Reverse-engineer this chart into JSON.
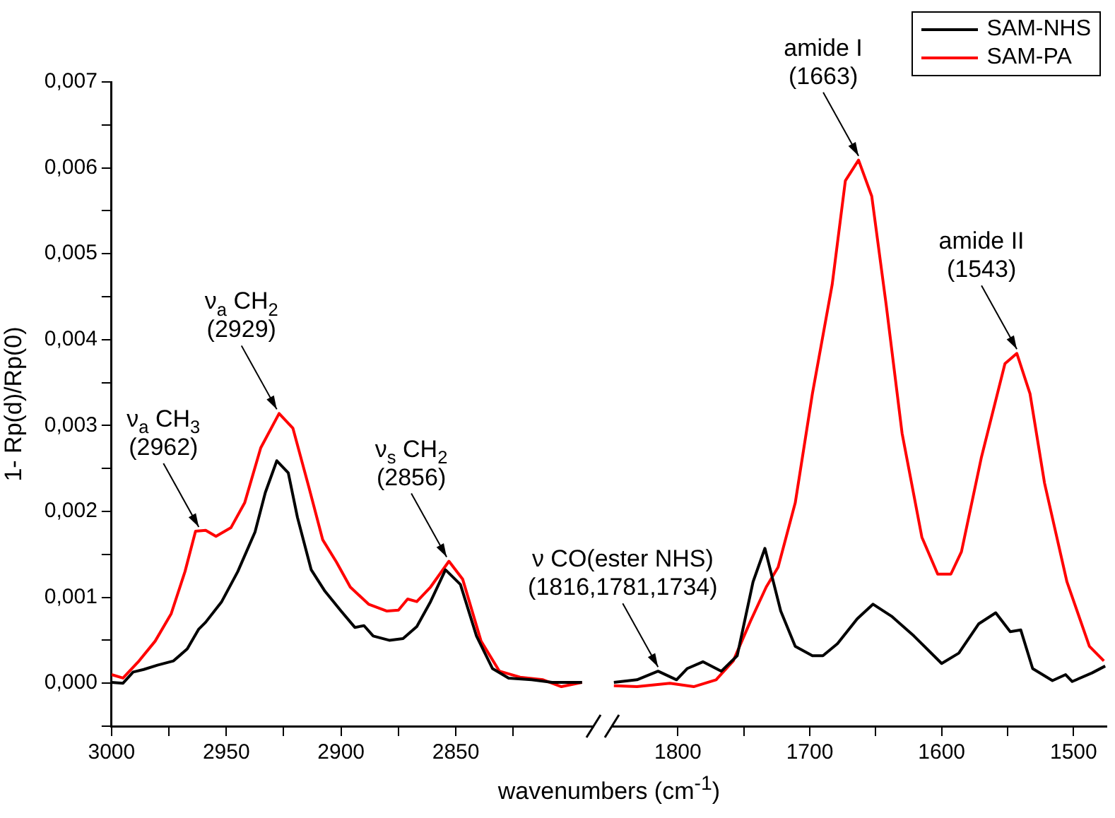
{
  "chart_data": [
    {
      "type": "line",
      "ylabel": "1- Rp(d)/Rp(0)",
      "xlim": [
        3000,
        2790
      ],
      "xticks": [
        3000,
        {
          "value": 2975,
          "label": null
        },
        2950,
        {
          "value": 2925,
          "label": null
        },
        2900,
        {
          "value": 2875,
          "label": null
        },
        2850,
        {
          "value": 2825,
          "label": null
        }
      ],
      "ylim": [
        -0.0005,
        0.007
      ],
      "yticks": [
        {
          "value": -0.0005,
          "label": null
        },
        {
          "value": 0,
          "label": "0,000"
        },
        {
          "value": 0.0005,
          "label": null
        },
        {
          "value": 0.001,
          "label": "0,001"
        },
        {
          "value": 0.0015,
          "label": null
        },
        {
          "value": 0.002,
          "label": "0,002"
        },
        {
          "value": 0.0025,
          "label": null
        },
        {
          "value": 0.003,
          "label": "0,003"
        },
        {
          "value": 0.0035,
          "label": null
        },
        {
          "value": 0.004,
          "label": "0,004"
        },
        {
          "value": 0.0045,
          "label": null
        },
        {
          "value": 0.005,
          "label": "0,005"
        },
        {
          "value": 0.0055,
          "label": null
        },
        {
          "value": 0.006,
          "label": "0,006"
        },
        {
          "value": 0.0065,
          "label": null
        },
        {
          "value": 0.007,
          "label": "0,007"
        }
      ],
      "series": [
        {
          "color": "#000000",
          "x": [
            3000,
            2995,
            2990.6,
            2986,
            2980,
            2973,
            2967,
            2962,
            2959,
            2952,
            2945,
            2937.5,
            2933,
            2928,
            2923,
            2919,
            2913,
            2907,
            2900,
            2894,
            2890,
            2886,
            2879,
            2873,
            2867,
            2861,
            2854.5,
            2848,
            2841,
            2834,
            2827,
            2817,
            2808,
            2795
          ],
          "values": [
            1e-05,
            0,
            0.00013,
            0.00016,
            0.00021,
            0.00026,
            0.0004,
            0.00063,
            0.00071,
            0.00095,
            0.0013,
            0.00176,
            0.00222,
            0.00259,
            0.00245,
            0.00193,
            0.00132,
            0.00107,
            0.00084,
            0.00065,
            0.00067,
            0.00055,
            0.0005,
            0.00052,
            0.00066,
            0.00095,
            0.00132,
            0.00115,
            0.00055,
            0.00017,
            6e-05,
            4e-05,
            1e-05,
            1e-05
          ]
        },
        {
          "color": "#ff0000",
          "x": [
            3000,
            2995,
            2988,
            2981,
            2974,
            2968,
            2963.4,
            2959,
            2954.5,
            2948,
            2942,
            2935,
            2927,
            2921,
            2914,
            2908,
            2902,
            2896,
            2888,
            2880,
            2875,
            2871,
            2867,
            2861,
            2853,
            2847,
            2839,
            2831,
            2822,
            2812,
            2804,
            2795
          ],
          "values": [
            0.0001,
            6e-05,
            0.00026,
            0.00049,
            0.00081,
            0.0013,
            0.00177,
            0.00178,
            0.00171,
            0.00181,
            0.0021,
            0.00274,
            0.00314,
            0.00297,
            0.00228,
            0.00167,
            0.00141,
            0.00112,
            0.00092,
            0.00084,
            0.00085,
            0.00098,
            0.00095,
            0.00112,
            0.00142,
            0.00121,
            0.00049,
            0.00014,
            7e-05,
            4e-05,
            -4e-05,
            1e-05
          ]
        }
      ],
      "annotations": [
        {
          "text": "ν$_{a}$ CH$_{3}$\n(2962)",
          "x": 2962,
          "y": 0.00177
        },
        {
          "text": "ν$_{a}$ CH$_{2}$\n(2929)",
          "x": 2928,
          "y": 0.00314
        },
        {
          "text": "ν$_{s}$ CH$_{2}$\n(2856)",
          "x": 2854,
          "y": 0.00142
        }
      ]
    },
    {
      "type": "line",
      "xlabel": "wavenumbers (cm$^{-1}$)",
      "xlim": [
        1850,
        1475
      ],
      "xticks": [
        1800,
        {
          "value": 1750,
          "label": null
        },
        1700,
        {
          "value": 1650,
          "label": null
        },
        1600,
        {
          "value": 1550,
          "label": null
        },
        1500
      ],
      "ylim": [
        -0.0005,
        0.007
      ],
      "tick_labels": "x",
      "legend": "top right",
      "series": [
        {
          "name": "SAM-NHS",
          "color": "#000000",
          "x": [
            1848.5,
            1831,
            1815,
            1801,
            1793,
            1781,
            1767,
            1755,
            1743,
            1734,
            1722,
            1711,
            1698,
            1690,
            1679,
            1664,
            1652,
            1638,
            1621,
            1600,
            1587,
            1572,
            1559,
            1548,
            1540,
            1531,
            1516,
            1506,
            1501,
            1486,
            1476
          ],
          "values": [
            1e-05,
            4e-05,
            0.00014,
            4e-05,
            0.00017,
            0.00025,
            0.00014,
            0.00032,
            0.00118,
            0.00157,
            0.00084,
            0.00043,
            0.00032,
            0.00032,
            0.00046,
            0.00075,
            0.00092,
            0.00078,
            0.00055,
            0.00023,
            0.00035,
            0.00069,
            0.00082,
            0.0006,
            0.00062,
            0.00017,
            3e-05,
            0.0001,
            2e-05,
            0.00012,
            0.0002
          ]
        },
        {
          "name": "SAM-PA",
          "color": "#ff0000",
          "x": [
            1848.5,
            1831,
            1806,
            1788,
            1771,
            1758,
            1745,
            1733,
            1724,
            1711,
            1698,
            1683,
            1673,
            1663,
            1653,
            1642,
            1630,
            1615,
            1603,
            1593,
            1585,
            1570,
            1552,
            1543,
            1533,
            1522,
            1505,
            1488,
            1477
          ],
          "values": [
            -3e-05,
            -4e-05,
            0,
            -4e-05,
            4e-05,
            0.00026,
            0.00072,
            0.00112,
            0.00135,
            0.0021,
            0.00337,
            0.00464,
            0.00585,
            0.00609,
            0.00567,
            0.0044,
            0.00291,
            0.0017,
            0.00127,
            0.00127,
            0.00153,
            0.00262,
            0.00372,
            0.00384,
            0.00337,
            0.00233,
            0.00118,
            0.00043,
            0.00026
          ]
        }
      ],
      "annotations": [
        {
          "text": "ν CO(ester NHS)\n(1816,1781,1734)",
          "x": 1815,
          "y": 0.00014
        },
        {
          "text": "amide I\n(1663)",
          "x": 1663,
          "y": 0.00609
        },
        {
          "text": "amide II\n(1543)",
          "x": 1543,
          "y": 0.00384
        }
      ]
    }
  ]
}
